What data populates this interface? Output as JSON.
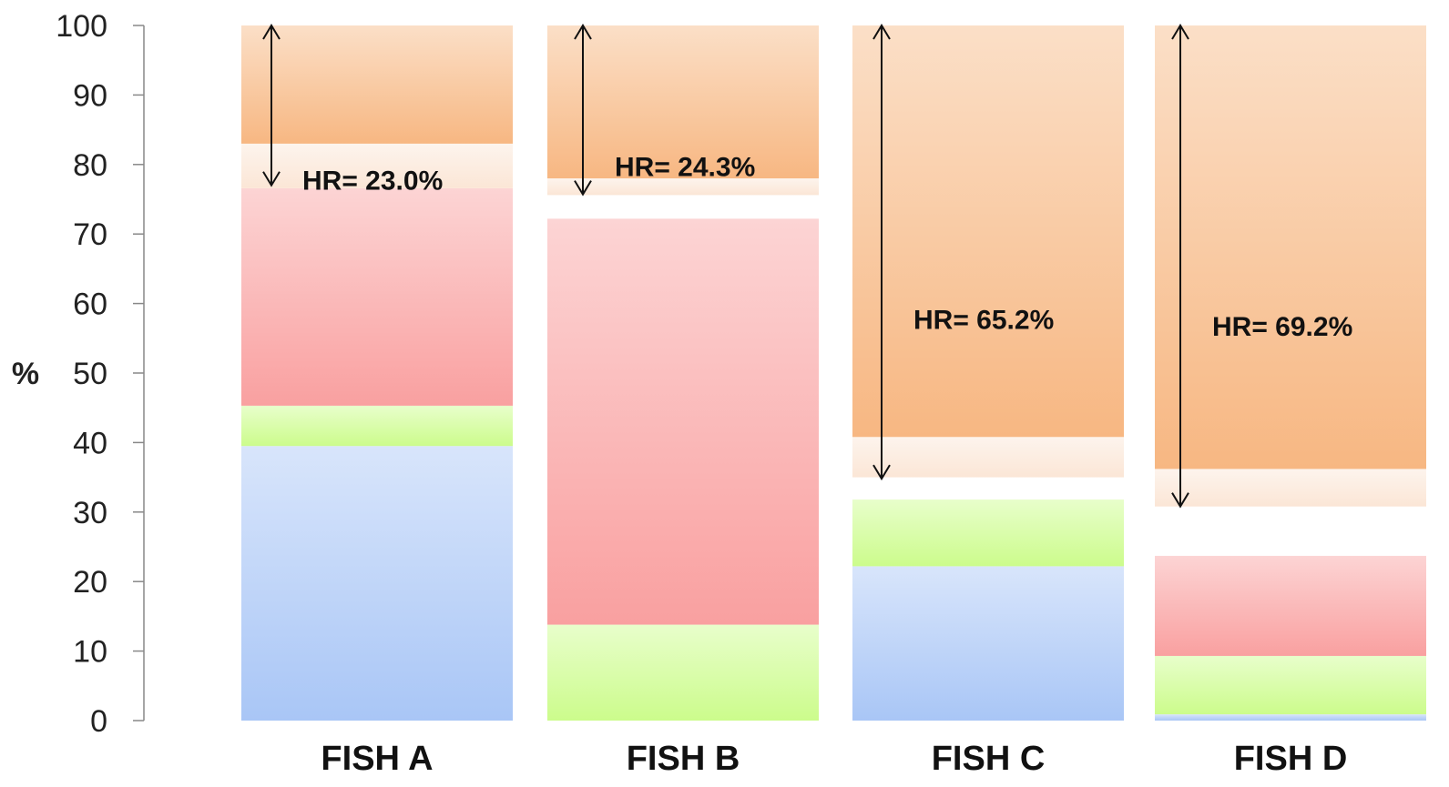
{
  "chart_data": {
    "type": "bar",
    "ylabel": "%",
    "ylim": [
      0,
      100
    ],
    "yticks": [
      "0",
      "10",
      "20",
      "30",
      "40",
      "50",
      "60",
      "70",
      "80",
      "90",
      "100"
    ],
    "grid": false,
    "categories": [
      "FISH A",
      "FISH B",
      "FISH C",
      "FISH D"
    ],
    "bars": [
      {
        "category": "FISH A",
        "segments": [
          {
            "from": 0,
            "to": 39.5,
            "color": "#a9c6f6"
          },
          {
            "from": 39.5,
            "to": 45.3,
            "color": "#ccfc8c"
          },
          {
            "from": 45.3,
            "to": 76.6,
            "color": "#f9a0a0"
          },
          {
            "from": 76.6,
            "to": 83.0,
            "color": "#fbe6d6"
          },
          {
            "from": 83.0,
            "to": 100,
            "color": "#f7b782"
          }
        ],
        "hr_label": "HR= 23.0%",
        "arrow": [
          77.0,
          100
        ]
      },
      {
        "category": "FISH B",
        "segments": [
          {
            "from": 0,
            "to": 13.8,
            "color": "#ccfc8c"
          },
          {
            "from": 13.8,
            "to": 72.2,
            "color": "#f9a0a0"
          },
          {
            "from": 75.6,
            "to": 78.0,
            "color": "#fbe6d6"
          },
          {
            "from": 78.0,
            "to": 100,
            "color": "#f7b782"
          }
        ],
        "hr_label": "HR= 24.3%",
        "arrow": [
          75.7,
          100
        ]
      },
      {
        "category": "FISH C",
        "segments": [
          {
            "from": 0,
            "to": 22.2,
            "color": "#a9c6f6"
          },
          {
            "from": 22.2,
            "to": 31.8,
            "color": "#ccfc8c"
          },
          {
            "from": 35.0,
            "to": 40.8,
            "color": "#fbe6d6"
          },
          {
            "from": 40.8,
            "to": 100,
            "color": "#f7b782"
          }
        ],
        "hr_label": "HR= 65.2%",
        "arrow": [
          34.8,
          100
        ]
      },
      {
        "category": "FISH D",
        "segments": [
          {
            "from": 0,
            "to": 0.9,
            "color": "#a9c6f6"
          },
          {
            "from": 0.9,
            "to": 9.3,
            "color": "#ccfc8c"
          },
          {
            "from": 9.3,
            "to": 23.7,
            "color": "#f9a0a0"
          },
          {
            "from": 30.8,
            "to": 36.2,
            "color": "#fbe6d6"
          },
          {
            "from": 36.2,
            "to": 100,
            "color": "#f7b782"
          }
        ],
        "hr_label": "HR= 69.2%",
        "arrow": [
          30.8,
          100
        ]
      }
    ]
  }
}
